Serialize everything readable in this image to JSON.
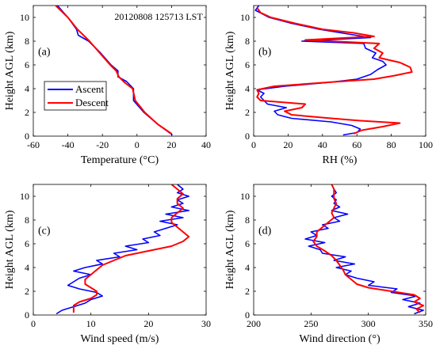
{
  "timestamp_label": "20120808 125713 LST",
  "legend": {
    "ascent": "Ascent",
    "descent": "Descent"
  },
  "colors": {
    "ascent": "#0000ff",
    "descent": "#ff0000",
    "axis": "#000000"
  },
  "chart_data": [
    {
      "type": "line",
      "panel": "(a)",
      "xlabel": "Temperature (°C)",
      "ylabel": "Height AGL (km)",
      "xlim": [
        -60,
        40
      ],
      "ylim": [
        0,
        11
      ],
      "xticks": [
        -60,
        -40,
        -20,
        0,
        20,
        40
      ],
      "yticks": [
        0,
        2,
        4,
        6,
        8,
        10
      ],
      "series": [
        {
          "name": "Ascent",
          "y": [
            0.1,
            1,
            2,
            3,
            4,
            4.6,
            5,
            5.5,
            6,
            7,
            8,
            8.5,
            9,
            10,
            11
          ],
          "x": [
            20.5,
            12,
            4,
            -2,
            -2,
            -6,
            -11,
            -11,
            -15,
            -21,
            -28,
            -34,
            -35,
            -40,
            -46
          ]
        },
        {
          "name": "Descent",
          "y": [
            0.2,
            1,
            2,
            3,
            4,
            4.5,
            5,
            5.5,
            6,
            7,
            8,
            9,
            10,
            11
          ],
          "x": [
            20,
            12,
            4.5,
            -1,
            -2.5,
            -7,
            -10.5,
            -12,
            -15.5,
            -21.5,
            -27.5,
            -34.5,
            -40,
            -47
          ]
        }
      ]
    },
    {
      "type": "line",
      "panel": "(b)",
      "xlabel": "RH (%)",
      "ylabel": "Height AGL (km)",
      "xlim": [
        0,
        100
      ],
      "ylim": [
        0,
        11
      ],
      "xticks": [
        0,
        20,
        40,
        60,
        80,
        100
      ],
      "yticks": [
        0,
        2,
        4,
        6,
        8,
        10
      ],
      "series": [
        {
          "name": "Ascent",
          "y": [
            0.1,
            0.3,
            0.6,
            0.9,
            1.2,
            1.5,
            1.8,
            2.1,
            2.4,
            2.7,
            3.0,
            3.3,
            3.6,
            3.9,
            4.2,
            4.5,
            4.8,
            5.2,
            5.6,
            6.0,
            6.3,
            6.6,
            7.0,
            7.4,
            7.8,
            8.0,
            8.3,
            8.6,
            9.0,
            9.5,
            10.0,
            10.3,
            10.6,
            11.0
          ],
          "x": [
            52,
            60,
            62,
            57,
            45,
            22,
            14,
            12,
            19,
            8,
            6,
            4,
            6,
            2,
            18,
            42,
            60,
            68,
            72,
            77,
            75,
            69,
            71,
            65,
            64,
            28,
            68,
            55,
            38,
            22,
            9,
            5,
            1,
            3
          ]
        },
        {
          "name": "Descent",
          "y": [
            0.2,
            0.5,
            0.8,
            1.1,
            1.3,
            1.5,
            1.8,
            2.1,
            2.4,
            2.7,
            3.0,
            3.3,
            3.6,
            3.9,
            4.2,
            4.5,
            4.8,
            5.1,
            5.4,
            5.8,
            6.2,
            6.6,
            7.0,
            7.4,
            7.8,
            8.1,
            8.4,
            8.7,
            9.0,
            9.5,
            10.0,
            10.4,
            10.8
          ],
          "x": [
            58,
            63,
            75,
            85,
            62,
            45,
            22,
            18,
            28,
            30,
            4,
            2,
            3,
            2,
            12,
            40,
            70,
            82,
            92,
            91,
            85,
            73,
            75,
            70,
            73,
            30,
            70,
            58,
            40,
            24,
            10,
            4,
            2
          ]
        }
      ]
    },
    {
      "type": "line",
      "panel": "(c)",
      "xlabel": "Wind speed (m/s)",
      "ylabel": "Height AGL (km)",
      "xlim": [
        0,
        30
      ],
      "ylim": [
        0,
        11
      ],
      "xticks": [
        0,
        10,
        20,
        30
      ],
      "yticks": [
        0,
        2,
        4,
        6,
        8,
        10
      ],
      "series": [
        {
          "name": "Ascent",
          "y": [
            0.1,
            0.4,
            0.7,
            1.0,
            1.3,
            1.6,
            1.9,
            2.2,
            2.5,
            2.8,
            3.1,
            3.4,
            3.7,
            4.0,
            4.3,
            4.6,
            4.9,
            5.2,
            5.5,
            5.8,
            6.1,
            6.4,
            6.7,
            7.0,
            7.3,
            7.6,
            7.9,
            8.2,
            8.5,
            8.8,
            9.1,
            9.4,
            9.7,
            10.0,
            10.3,
            10.6,
            11.0
          ],
          "x": [
            4,
            5,
            7,
            9,
            10,
            12,
            11,
            8,
            6,
            7,
            8,
            10,
            7,
            9,
            12,
            11,
            15,
            14,
            18,
            16,
            20,
            19,
            22,
            21,
            23,
            25,
            22,
            26,
            23,
            27,
            24,
            26,
            25,
            27,
            25,
            26,
            25
          ]
        },
        {
          "name": "Descent",
          "y": [
            0.2,
            0.5,
            0.8,
            1.1,
            1.4,
            1.7,
            2.0,
            2.3,
            2.6,
            3.0,
            3.4,
            3.8,
            4.2,
            4.6,
            5.0,
            5.4,
            5.8,
            6.2,
            6.6,
            7.0,
            7.4,
            7.8,
            8.2,
            8.6,
            9.0,
            9.4,
            9.8,
            10.2,
            10.6,
            11.0
          ],
          "x": [
            7,
            7,
            7,
            8,
            10,
            11,
            11,
            10,
            9,
            9,
            10,
            11,
            12,
            14,
            16,
            20,
            24,
            26,
            27,
            26,
            25,
            24,
            24,
            25,
            26,
            25,
            25,
            26,
            25,
            24
          ]
        }
      ]
    },
    {
      "type": "line",
      "panel": "(d)",
      "xlabel": "Wind direction (°)",
      "ylabel": "Height AGL (km)",
      "xlim": [
        200,
        350
      ],
      "ylim": [
        0,
        11
      ],
      "xticks": [
        200,
        250,
        300,
        350
      ],
      "yticks": [
        0,
        2,
        4,
        6,
        8,
        10
      ],
      "series": [
        {
          "name": "Ascent",
          "y": [
            0.1,
            0.4,
            0.7,
            1.0,
            1.3,
            1.6,
            1.9,
            2.2,
            2.5,
            2.8,
            3.1,
            3.4,
            3.7,
            4.0,
            4.3,
            4.6,
            4.9,
            5.2,
            5.5,
            5.8,
            6.1,
            6.4,
            6.7,
            7.0,
            7.3,
            7.6,
            7.9,
            8.2,
            8.5,
            8.8,
            9.1,
            9.4,
            9.7,
            10.0,
            10.3,
            10.6,
            11.0
          ],
          "x": [
            340,
            348,
            335,
            345,
            330,
            342,
            320,
            325,
            300,
            305,
            290,
            280,
            285,
            272,
            288,
            270,
            280,
            260,
            258,
            248,
            262,
            245,
            255,
            250,
            265,
            260,
            275,
            270,
            282,
            268,
            275,
            270,
            272,
            268,
            272,
            270,
            268
          ]
        },
        {
          "name": "Descent",
          "y": [
            0.2,
            0.5,
            0.8,
            1.1,
            1.4,
            1.7,
            2.0,
            2.3,
            2.6,
            3.0,
            3.4,
            3.8,
            4.2,
            4.6,
            5.0,
            5.4,
            5.8,
            6.2,
            6.6,
            7.0,
            7.4,
            7.8,
            8.2,
            8.6,
            9.0,
            9.4,
            9.8,
            10.2,
            10.6,
            11.0
          ],
          "x": [
            345,
            342,
            348,
            340,
            345,
            340,
            320,
            300,
            290,
            285,
            280,
            278,
            275,
            272,
            268,
            262,
            255,
            252,
            255,
            255,
            260,
            265,
            270,
            268,
            270,
            272,
            270,
            270,
            270,
            268
          ]
        }
      ]
    }
  ]
}
